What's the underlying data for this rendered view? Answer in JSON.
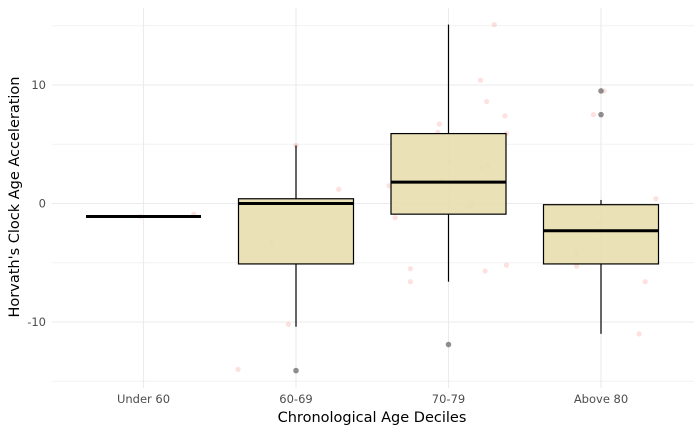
{
  "chart_data": {
    "type": "box",
    "title": "",
    "xlabel": "Chronological Age Deciles",
    "ylabel": "Horvath's Clock Age Acceleration",
    "categories": [
      "Under 60",
      "60-69",
      "70-79",
      "Above 80"
    ],
    "y_ticks": [
      -10,
      0,
      10
    ],
    "y_tick_labels": [
      "-10",
      "0",
      "10"
    ],
    "ylim": [
      -15.2,
      16.1
    ],
    "grid": true,
    "legend": "none",
    "box_fill": "#e8dfae",
    "jitter_color": "#f8766d",
    "outlier_color": "#555555",
    "boxes": [
      {
        "category": "Under 60",
        "min": -1.1,
        "q1": -1.1,
        "median": -1.1,
        "q3": -1.1,
        "max": -1.1
      },
      {
        "category": "60-69",
        "min": -10.4,
        "q1": -5.1,
        "median": 0.0,
        "q3": 0.4,
        "max": 4.9
      },
      {
        "category": "70-79",
        "min": -6.6,
        "q1": -0.9,
        "median": 1.8,
        "q3": 5.9,
        "max": 15.1
      },
      {
        "category": "Above 80",
        "min": -11.0,
        "q1": -5.1,
        "median": -2.3,
        "q3": -0.1,
        "max": 0.3
      }
    ],
    "outliers": [
      {
        "category": "60-69",
        "x_offset": 0.0,
        "value": -14.1
      },
      {
        "category": "70-79",
        "x_offset": 0.0,
        "value": -11.9
      },
      {
        "category": "Above 80",
        "x_offset": 0.0,
        "value": 9.5
      },
      {
        "category": "Above 80",
        "x_offset": 0.0,
        "value": 7.5
      }
    ],
    "points": [
      {
        "category": "Under 60",
        "x_offset": -0.02,
        "value": -1.1
      },
      {
        "category": "Under 60",
        "x_offset": 0.33,
        "value": -0.9
      },
      {
        "category": "60-69",
        "x_offset": -0.38,
        "value": -14.0
      },
      {
        "category": "60-69",
        "x_offset": -0.16,
        "value": -3.3
      },
      {
        "category": "60-69",
        "x_offset": -0.05,
        "value": -10.2
      },
      {
        "category": "60-69",
        "x_offset": 0.28,
        "value": 1.2
      },
      {
        "category": "60-69",
        "x_offset": 0.0,
        "value": 4.9
      },
      {
        "category": "70-79",
        "x_offset": -0.39,
        "value": 1.5
      },
      {
        "category": "70-79",
        "x_offset": -0.35,
        "value": -1.2
      },
      {
        "category": "70-79",
        "x_offset": -0.34,
        "value": -0.4
      },
      {
        "category": "70-79",
        "x_offset": -0.25,
        "value": -5.5
      },
      {
        "category": "70-79",
        "x_offset": -0.25,
        "value": -6.6
      },
      {
        "category": "70-79",
        "x_offset": -0.06,
        "value": 6.7
      },
      {
        "category": "70-79",
        "x_offset": -0.07,
        "value": 6.0
      },
      {
        "category": "70-79",
        "x_offset": -0.04,
        "value": 2.0
      },
      {
        "category": "70-79",
        "x_offset": 0.01,
        "value": 3.5
      },
      {
        "category": "70-79",
        "x_offset": 0.02,
        "value": 1.7
      },
      {
        "category": "70-79",
        "x_offset": 0.12,
        "value": -0.3
      },
      {
        "category": "70-79",
        "x_offset": 0.15,
        "value": -0.2
      },
      {
        "category": "70-79",
        "x_offset": 0.16,
        "value": 0.1
      },
      {
        "category": "70-79",
        "x_offset": 0.21,
        "value": 10.4
      },
      {
        "category": "70-79",
        "x_offset": 0.22,
        "value": 3.0
      },
      {
        "category": "70-79",
        "x_offset": 0.26,
        "value": 3.2
      },
      {
        "category": "70-79",
        "x_offset": 0.24,
        "value": -5.7
      },
      {
        "category": "70-79",
        "x_offset": 0.25,
        "value": 8.6
      },
      {
        "category": "70-79",
        "x_offset": 0.3,
        "value": 15.1
      },
      {
        "category": "70-79",
        "x_offset": 0.37,
        "value": 7.4
      },
      {
        "category": "70-79",
        "x_offset": 0.38,
        "value": 5.9
      },
      {
        "category": "70-79",
        "x_offset": 0.38,
        "value": -5.2
      },
      {
        "category": "Above 80",
        "x_offset": -0.16,
        "value": -4.2
      },
      {
        "category": "Above 80",
        "x_offset": -0.16,
        "value": -5.3
      },
      {
        "category": "Above 80",
        "x_offset": -0.05,
        "value": 7.5
      },
      {
        "category": "Above 80",
        "x_offset": -0.02,
        "value": -2.3
      },
      {
        "category": "Above 80",
        "x_offset": -0.01,
        "value": -1.7
      },
      {
        "category": "Above 80",
        "x_offset": 0.02,
        "value": 9.5
      },
      {
        "category": "Above 80",
        "x_offset": 0.29,
        "value": -6.6
      },
      {
        "category": "Above 80",
        "x_offset": 0.25,
        "value": -11.0
      },
      {
        "category": "Above 80",
        "x_offset": 0.36,
        "value": 0.4
      }
    ]
  }
}
